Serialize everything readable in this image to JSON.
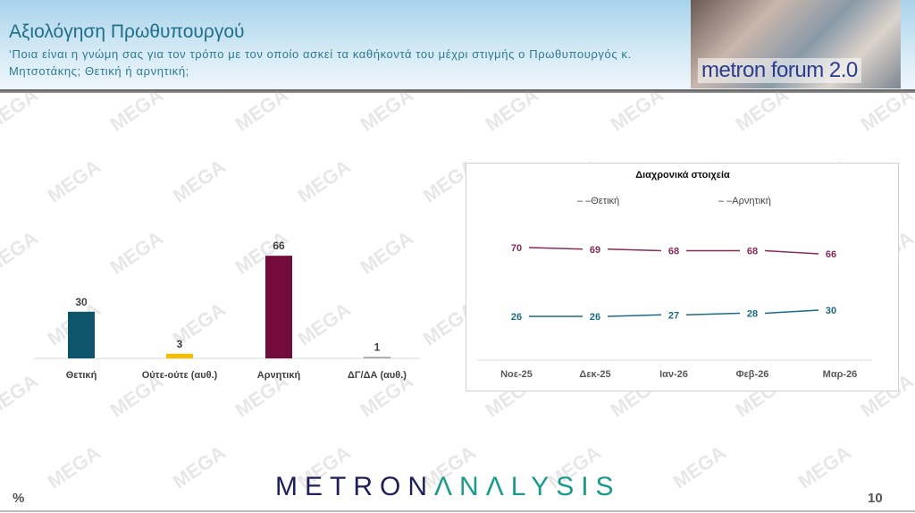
{
  "header": {
    "title": "Αξιολόγηση Πρωθυπουργού",
    "subtitle": "‘Ποια είναι η γνώμη σας για τον τρόπο με τον οποίο ασκεί τα καθήκοντά του μέχρι στιγμής ο Πρωθυπουργός κ. Μητσοτάκης; Θετική ή αρνητική;",
    "forum_logo": "metron forum 2.0"
  },
  "watermark": "MEGA",
  "footer": {
    "logo_part1": "METRON",
    "logo_part2": "ΛNΛLYSIS",
    "unit": "%",
    "page_number": "10"
  },
  "chart_data": [
    {
      "type": "bar",
      "categories": [
        "Θετική",
        "Ούτε-ούτε (αυθ.)",
        "Αρνητική",
        "ΔΓ/ΔΑ (αυθ.)"
      ],
      "values": [
        30,
        3,
        66,
        1
      ],
      "colors": [
        "#0d556b",
        "#f5bf00",
        "#730c3a",
        "#a6a6a6"
      ],
      "data_labels": [
        "30",
        "3",
        "66",
        "1"
      ]
    },
    {
      "type": "line",
      "title": "Διαχρονικά στοιχεία",
      "categories": [
        "Νοε-25",
        "Δεκ-25",
        "Ιαν-26",
        "Φεβ-26",
        "Μαρ-26"
      ],
      "legend": "top",
      "series": [
        {
          "name": "Θετική",
          "values": [
            26,
            26,
            27,
            28,
            30
          ],
          "color": "#1b6b84"
        },
        {
          "name": "Αρνητική",
          "values": [
            70,
            69,
            68,
            68,
            66
          ],
          "color": "#8a2a5a"
        }
      ]
    }
  ]
}
